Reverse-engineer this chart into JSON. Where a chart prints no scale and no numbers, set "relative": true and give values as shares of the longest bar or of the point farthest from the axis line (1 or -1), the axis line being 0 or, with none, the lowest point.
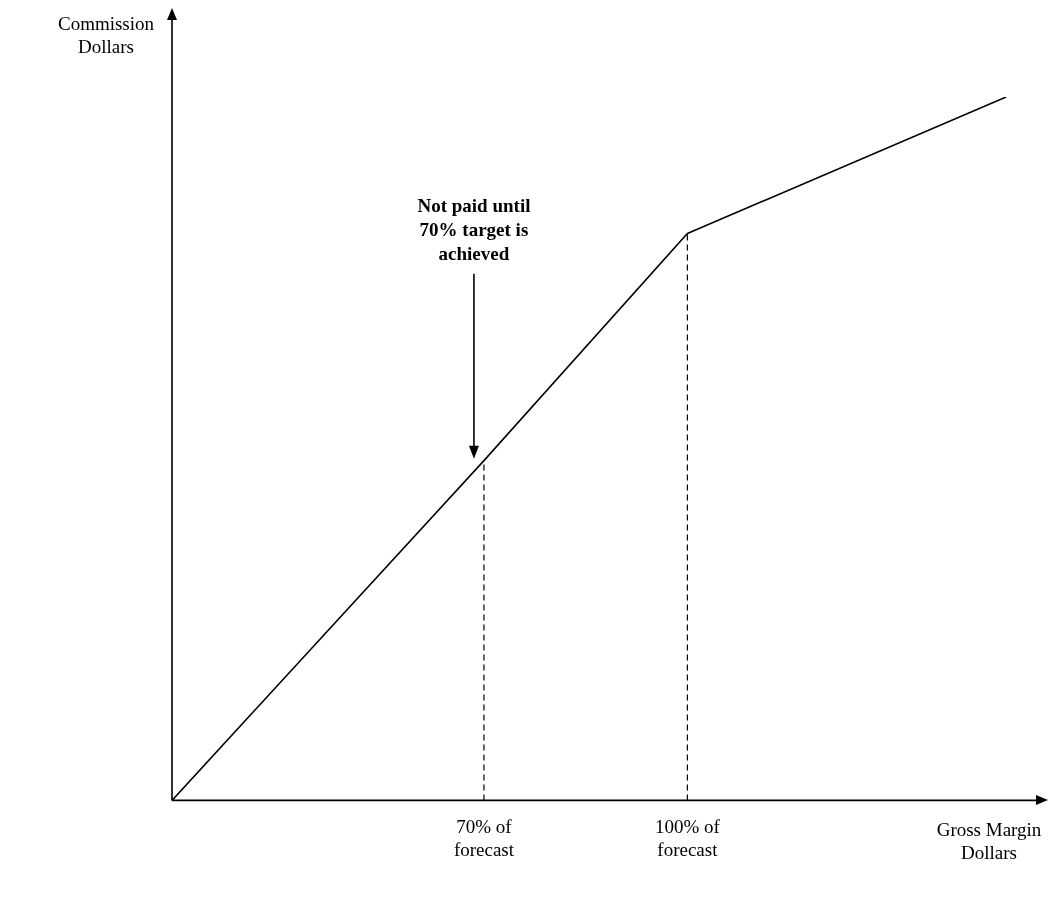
{
  "chart_data": {
    "type": "line",
    "relative": true,
    "xlabel": "Gross Margin Dollars",
    "ylabel": "Commission Dollars",
    "x": [
      24,
      70,
      100,
      147
    ],
    "xlim": [
      24,
      152
    ],
    "xticks": [
      {
        "value": 70,
        "label": "70% of forecast"
      },
      {
        "value": 100,
        "label": "100% of forecast"
      }
    ],
    "series": [
      {
        "color": "#000000",
        "values": [
          0,
          0.483,
          0.806,
          1
        ]
      }
    ],
    "ref_lines": [
      {
        "axis": "x",
        "value": 70,
        "line_style": "dashed",
        "color": "#000000"
      },
      {
        "axis": "x",
        "value": 100,
        "line_style": "dashed",
        "color": "#000000"
      }
    ],
    "annotations": [
      "Not paid until 70% target is achieved"
    ],
    "grid": false,
    "legend": false,
    "marker": "none",
    "line_style": "solid"
  }
}
